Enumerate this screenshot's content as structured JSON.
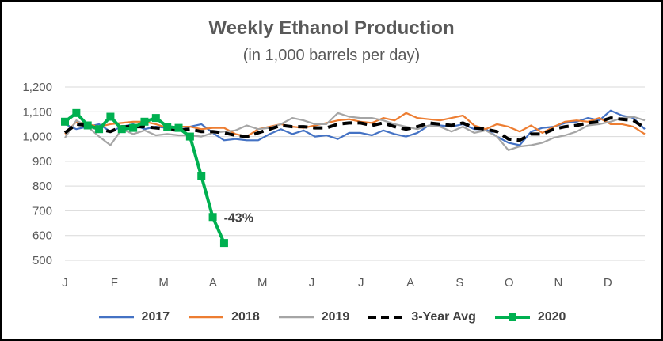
{
  "chart_data": {
    "type": "line",
    "title": "Weekly Ethanol Production",
    "subtitle": "(in 1,000 barrels per day)",
    "xlabel": "",
    "ylabel": "",
    "ylim": [
      500,
      1200
    ],
    "yticks": [
      500,
      600,
      700,
      800,
      900,
      1000,
      1100,
      1200
    ],
    "ytick_labels": [
      "500",
      "600",
      "700",
      "800",
      "900",
      "1,000",
      "1,100",
      "1,200"
    ],
    "x_tick_labels": [
      "J",
      "F",
      "M",
      "A",
      "M",
      "J",
      "J",
      "A",
      "S",
      "O",
      "N",
      "D"
    ],
    "weeks": 52,
    "grid": "horizontal",
    "legend_position": "bottom",
    "annotation": {
      "text": "-43%",
      "series": "2020",
      "week": 13
    },
    "series": [
      {
        "name": "2017",
        "color": "#4472c4",
        "style": "solid",
        "marker": "none",
        "values": [
          1050,
          1030,
          1040,
          1050,
          1020,
          1040,
          1050,
          1030,
          1040,
          1035,
          1025,
          1040,
          1050,
          1015,
          985,
          990,
          985,
          985,
          1010,
          1030,
          1010,
          1025,
          1000,
          1005,
          990,
          1015,
          1015,
          1005,
          1025,
          1010,
          1000,
          1015,
          1045,
          1045,
          1040,
          1050,
          1030,
          1030,
          1000,
          975,
          965,
          1020,
          1035,
          1040,
          1055,
          1060,
          1075,
          1065,
          1105,
          1085,
          1075,
          1030
        ]
      },
      {
        "name": "2018",
        "color": "#ed7d31",
        "style": "solid",
        "marker": "none",
        "values": [
          1010,
          1060,
          1050,
          1040,
          1050,
          1055,
          1060,
          1060,
          1050,
          1035,
          1040,
          1040,
          1030,
          1035,
          1035,
          1010,
          1000,
          1030,
          1040,
          1050,
          1040,
          1035,
          1045,
          1055,
          1065,
          1070,
          1060,
          1055,
          1075,
          1065,
          1095,
          1075,
          1070,
          1065,
          1075,
          1085,
          1045,
          1030,
          1050,
          1040,
          1020,
          1045,
          1015,
          1040,
          1060,
          1065,
          1060,
          1075,
          1050,
          1050,
          1040,
          1010
        ]
      },
      {
        "name": "2019",
        "color": "#a5a5a5",
        "style": "solid",
        "marker": "none",
        "values": [
          995,
          1065,
          1040,
          1000,
          965,
          1030,
          1010,
          1025,
          1005,
          1010,
          1005,
          1005,
          1000,
          1015,
          1020,
          1025,
          1045,
          1030,
          1035,
          1050,
          1075,
          1065,
          1050,
          1050,
          1095,
          1080,
          1075,
          1075,
          1065,
          1050,
          1040,
          1030,
          1045,
          1040,
          1020,
          1040,
          1015,
          1025,
          1000,
          945,
          960,
          965,
          975,
          995,
          1005,
          1020,
          1045,
          1050,
          1060,
          1075,
          1080,
          1065
        ]
      },
      {
        "name": "3-Year Avg",
        "color": "#000000",
        "style": "dashed",
        "marker": "none",
        "values": [
          1015,
          1050,
          1045,
          1030,
          1020,
          1040,
          1040,
          1040,
          1035,
          1030,
          1025,
          1030,
          1020,
          1020,
          1015,
          1005,
          1000,
          1015,
          1030,
          1045,
          1040,
          1040,
          1035,
          1035,
          1050,
          1055,
          1055,
          1045,
          1055,
          1040,
          1030,
          1040,
          1055,
          1050,
          1045,
          1055,
          1035,
          1030,
          1020,
          990,
          985,
          1010,
          1010,
          1030,
          1040,
          1045,
          1055,
          1060,
          1075,
          1070,
          1065,
          1035
        ]
      },
      {
        "name": "2020",
        "color": "#00b050",
        "style": "solid",
        "marker": "square",
        "values": [
          1060,
          1095,
          1045,
          1030,
          1080,
          1030,
          1035,
          1060,
          1075,
          1040,
          1035,
          1000,
          840,
          675,
          570
        ]
      }
    ]
  }
}
